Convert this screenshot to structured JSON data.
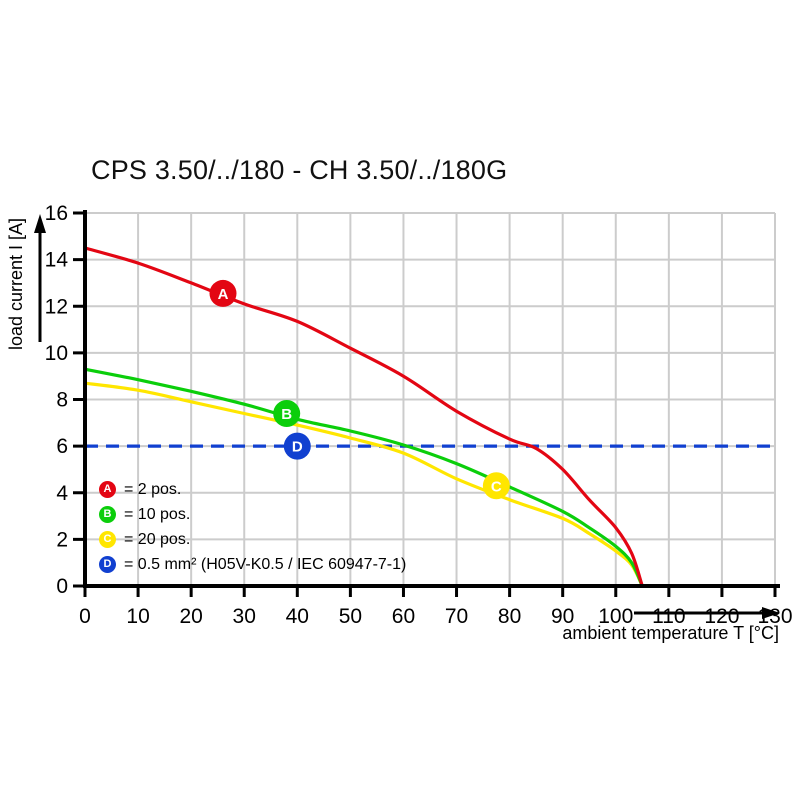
{
  "title": "CPS 3.50/../180 - CH 3.50/../180G",
  "colors": {
    "red": "#e30613",
    "green": "#0bce0b",
    "yellow": "#ffe600",
    "blue": "#1140d0",
    "grid": "#cccccc",
    "axis": "#000000",
    "marker_letter": "#ffffff"
  },
  "legend": {
    "items": [
      {
        "letter": "A",
        "label": "= 2 pos.",
        "color_key": "red"
      },
      {
        "letter": "B",
        "label": "= 10 pos.",
        "color_key": "green"
      },
      {
        "letter": "C",
        "label": "= 20 pos.",
        "color_key": "yellow"
      },
      {
        "letter": "D",
        "label": "= 0.5 mm² (H05V-K0.5 / IEC 60947-7-1)",
        "color_key": "blue"
      }
    ]
  },
  "chart_data": {
    "type": "line",
    "title": "CPS 3.50/../180 - CH 3.50/../180G",
    "xlabel": "ambient temperature T [°C]",
    "ylabel": "load current I [A]",
    "xlim": [
      0,
      130
    ],
    "ylim": [
      0,
      16
    ],
    "xticks": [
      0,
      10,
      20,
      30,
      40,
      50,
      60,
      70,
      80,
      90,
      100,
      110,
      120,
      130
    ],
    "yticks": [
      0,
      2,
      4,
      6,
      8,
      10,
      12,
      14,
      16
    ],
    "grid": true,
    "legend_position": "lower-left",
    "series": [
      {
        "name": "D = 0.5 mm² (H05V-K0.5 / IEC 60947-7-1)",
        "color_key": "blue",
        "style": "dashed",
        "marker": {
          "letter": "D",
          "x": 40,
          "y": 6.0
        },
        "points": [
          [
            0,
            6
          ],
          [
            130,
            6
          ]
        ]
      },
      {
        "name": "C = 20 pos.",
        "color_key": "yellow",
        "style": "solid",
        "marker": {
          "letter": "C",
          "x": 77.5,
          "y": 4.3
        },
        "points": [
          [
            0,
            8.7
          ],
          [
            10,
            8.4
          ],
          [
            20,
            7.9
          ],
          [
            30,
            7.4
          ],
          [
            40,
            6.9
          ],
          [
            50,
            6.35
          ],
          [
            60,
            5.7
          ],
          [
            70,
            4.6
          ],
          [
            80,
            3.7
          ],
          [
            90,
            2.9
          ],
          [
            95,
            2.25
          ],
          [
            100,
            1.5
          ],
          [
            103,
            0.9
          ],
          [
            105,
            0
          ]
        ]
      },
      {
        "name": "B = 10 pos.",
        "color_key": "green",
        "style": "solid",
        "marker": {
          "letter": "B",
          "x": 38,
          "y": 7.4
        },
        "points": [
          [
            0,
            9.3
          ],
          [
            10,
            8.85
          ],
          [
            20,
            8.35
          ],
          [
            30,
            7.8
          ],
          [
            40,
            7.15
          ],
          [
            50,
            6.65
          ],
          [
            60,
            6.05
          ],
          [
            70,
            5.25
          ],
          [
            80,
            4.25
          ],
          [
            90,
            3.2
          ],
          [
            95,
            2.5
          ],
          [
            100,
            1.7
          ],
          [
            103,
            1.0
          ],
          [
            105,
            0
          ]
        ]
      },
      {
        "name": "A = 2 pos.",
        "color_key": "red",
        "style": "solid",
        "marker": {
          "letter": "A",
          "x": 26,
          "y": 12.55
        },
        "points": [
          [
            0,
            14.5
          ],
          [
            10,
            13.85
          ],
          [
            20,
            13.0
          ],
          [
            30,
            12.1
          ],
          [
            40,
            11.35
          ],
          [
            50,
            10.2
          ],
          [
            60,
            9.0
          ],
          [
            70,
            7.5
          ],
          [
            80,
            6.3
          ],
          [
            85,
            5.9
          ],
          [
            90,
            5.0
          ],
          [
            95,
            3.7
          ],
          [
            100,
            2.5
          ],
          [
            103,
            1.4
          ],
          [
            105,
            0
          ]
        ]
      }
    ]
  }
}
